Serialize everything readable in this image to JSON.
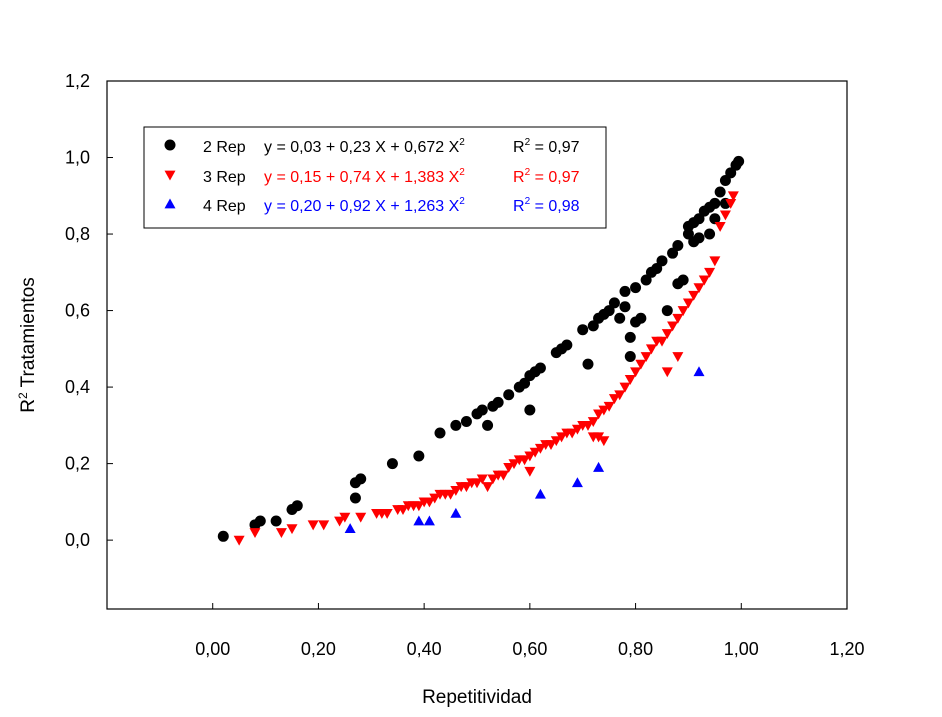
{
  "chart_data": {
    "type": "scatter",
    "xlabel": "Repetitividad",
    "ylabel": "R",
    "ylabel_sup": "2",
    "ylabel_rest": " Tratamientos",
    "xlim": [
      -0.2,
      1.2
    ],
    "ylim": [
      -0.18,
      1.2
    ],
    "xticks": [
      "0,00",
      "0,20",
      "0,40",
      "0,60",
      "0,80",
      "1,00",
      "1,20"
    ],
    "xtick_values": [
      0,
      0.2,
      0.4,
      0.6,
      0.8,
      1.0,
      1.2
    ],
    "yticks": [
      "0,0",
      "0,2",
      "0,4",
      "0,6",
      "0,8",
      "1,0",
      "1,2"
    ],
    "ytick_values": [
      0,
      0.2,
      0.4,
      0.6,
      0.8,
      1.0,
      1.2
    ],
    "grid": false,
    "legend_position": "top-left",
    "series": [
      {
        "name": "2 Rep",
        "marker": "circle",
        "color": "#000000",
        "equation": "y = 0,03 + 0,23 X + 0,672 X",
        "equation_sup": "2",
        "r2_label": "R",
        "r2_sup": "2",
        "r2_value": " = 0,97",
        "points": [
          [
            0.02,
            0.01
          ],
          [
            0.08,
            0.04
          ],
          [
            0.09,
            0.05
          ],
          [
            0.12,
            0.05
          ],
          [
            0.15,
            0.08
          ],
          [
            0.16,
            0.09
          ],
          [
            0.27,
            0.11
          ],
          [
            0.27,
            0.15
          ],
          [
            0.28,
            0.16
          ],
          [
            0.34,
            0.2
          ],
          [
            0.39,
            0.22
          ],
          [
            0.43,
            0.28
          ],
          [
            0.46,
            0.3
          ],
          [
            0.48,
            0.31
          ],
          [
            0.5,
            0.33
          ],
          [
            0.51,
            0.34
          ],
          [
            0.52,
            0.3
          ],
          [
            0.53,
            0.35
          ],
          [
            0.54,
            0.36
          ],
          [
            0.56,
            0.38
          ],
          [
            0.58,
            0.4
          ],
          [
            0.59,
            0.41
          ],
          [
            0.6,
            0.34
          ],
          [
            0.6,
            0.43
          ],
          [
            0.61,
            0.44
          ],
          [
            0.62,
            0.45
          ],
          [
            0.65,
            0.49
          ],
          [
            0.66,
            0.5
          ],
          [
            0.67,
            0.51
          ],
          [
            0.7,
            0.55
          ],
          [
            0.71,
            0.46
          ],
          [
            0.72,
            0.56
          ],
          [
            0.73,
            0.58
          ],
          [
            0.74,
            0.59
          ],
          [
            0.75,
            0.6
          ],
          [
            0.76,
            0.62
          ],
          [
            0.77,
            0.58
          ],
          [
            0.78,
            0.61
          ],
          [
            0.78,
            0.65
          ],
          [
            0.79,
            0.48
          ],
          [
            0.79,
            0.53
          ],
          [
            0.8,
            0.57
          ],
          [
            0.8,
            0.66
          ],
          [
            0.81,
            0.58
          ],
          [
            0.82,
            0.68
          ],
          [
            0.83,
            0.7
          ],
          [
            0.84,
            0.71
          ],
          [
            0.85,
            0.73
          ],
          [
            0.86,
            0.6
          ],
          [
            0.87,
            0.75
          ],
          [
            0.88,
            0.77
          ],
          [
            0.88,
            0.67
          ],
          [
            0.89,
            0.68
          ],
          [
            0.9,
            0.8
          ],
          [
            0.9,
            0.82
          ],
          [
            0.91,
            0.83
          ],
          [
            0.91,
            0.78
          ],
          [
            0.92,
            0.84
          ],
          [
            0.92,
            0.79
          ],
          [
            0.93,
            0.86
          ],
          [
            0.94,
            0.87
          ],
          [
            0.94,
            0.8
          ],
          [
            0.95,
            0.88
          ],
          [
            0.95,
            0.84
          ],
          [
            0.96,
            0.91
          ],
          [
            0.97,
            0.94
          ],
          [
            0.97,
            0.88
          ],
          [
            0.98,
            0.96
          ],
          [
            0.99,
            0.98
          ],
          [
            0.995,
            0.99
          ]
        ]
      },
      {
        "name": "3 Rep",
        "marker": "triangle-down",
        "color": "#ff0000",
        "equation": "y = 0,15 + 0,74 X + 1,383 X",
        "equation_sup": "2",
        "r2_label": "R",
        "r2_sup": "2",
        "r2_value": " = 0,97",
        "points": [
          [
            0.05,
            0.0
          ],
          [
            0.08,
            0.02
          ],
          [
            0.13,
            0.02
          ],
          [
            0.15,
            0.03
          ],
          [
            0.19,
            0.04
          ],
          [
            0.21,
            0.04
          ],
          [
            0.24,
            0.05
          ],
          [
            0.25,
            0.06
          ],
          [
            0.28,
            0.06
          ],
          [
            0.31,
            0.07
          ],
          [
            0.32,
            0.07
          ],
          [
            0.33,
            0.07
          ],
          [
            0.35,
            0.08
          ],
          [
            0.36,
            0.08
          ],
          [
            0.37,
            0.09
          ],
          [
            0.38,
            0.09
          ],
          [
            0.39,
            0.09
          ],
          [
            0.4,
            0.1
          ],
          [
            0.41,
            0.1
          ],
          [
            0.42,
            0.11
          ],
          [
            0.43,
            0.12
          ],
          [
            0.44,
            0.12
          ],
          [
            0.45,
            0.12
          ],
          [
            0.46,
            0.13
          ],
          [
            0.47,
            0.14
          ],
          [
            0.48,
            0.14
          ],
          [
            0.49,
            0.15
          ],
          [
            0.5,
            0.15
          ],
          [
            0.51,
            0.16
          ],
          [
            0.52,
            0.14
          ],
          [
            0.53,
            0.16
          ],
          [
            0.54,
            0.17
          ],
          [
            0.55,
            0.17
          ],
          [
            0.56,
            0.19
          ],
          [
            0.57,
            0.2
          ],
          [
            0.58,
            0.21
          ],
          [
            0.59,
            0.21
          ],
          [
            0.6,
            0.22
          ],
          [
            0.6,
            0.18
          ],
          [
            0.61,
            0.23
          ],
          [
            0.62,
            0.24
          ],
          [
            0.63,
            0.25
          ],
          [
            0.64,
            0.25
          ],
          [
            0.65,
            0.26
          ],
          [
            0.66,
            0.27
          ],
          [
            0.67,
            0.28
          ],
          [
            0.68,
            0.28
          ],
          [
            0.69,
            0.29
          ],
          [
            0.7,
            0.3
          ],
          [
            0.71,
            0.3
          ],
          [
            0.72,
            0.31
          ],
          [
            0.72,
            0.27
          ],
          [
            0.73,
            0.33
          ],
          [
            0.73,
            0.27
          ],
          [
            0.74,
            0.34
          ],
          [
            0.74,
            0.26
          ],
          [
            0.75,
            0.35
          ],
          [
            0.76,
            0.37
          ],
          [
            0.77,
            0.38
          ],
          [
            0.78,
            0.4
          ],
          [
            0.79,
            0.42
          ],
          [
            0.8,
            0.44
          ],
          [
            0.81,
            0.46
          ],
          [
            0.82,
            0.48
          ],
          [
            0.83,
            0.5
          ],
          [
            0.84,
            0.52
          ],
          [
            0.85,
            0.52
          ],
          [
            0.86,
            0.54
          ],
          [
            0.86,
            0.44
          ],
          [
            0.87,
            0.56
          ],
          [
            0.88,
            0.58
          ],
          [
            0.88,
            0.48
          ],
          [
            0.89,
            0.6
          ],
          [
            0.9,
            0.62
          ],
          [
            0.91,
            0.64
          ],
          [
            0.92,
            0.66
          ],
          [
            0.93,
            0.68
          ],
          [
            0.94,
            0.7
          ],
          [
            0.95,
            0.73
          ],
          [
            0.96,
            0.82
          ],
          [
            0.97,
            0.85
          ],
          [
            0.98,
            0.88
          ],
          [
            0.985,
            0.9
          ]
        ]
      },
      {
        "name": "4 Rep",
        "marker": "triangle-up",
        "color": "#0000ff",
        "equation": "y = 0,20 + 0,92 X + 1,263 X",
        "equation_sup": "2",
        "r2_label": "R",
        "r2_sup": "2",
        "r2_value": " = 0,98",
        "points": [
          [
            0.26,
            0.03
          ],
          [
            0.39,
            0.05
          ],
          [
            0.41,
            0.05
          ],
          [
            0.46,
            0.07
          ],
          [
            0.62,
            0.12
          ],
          [
            0.69,
            0.15
          ],
          [
            0.73,
            0.19
          ],
          [
            0.92,
            0.44
          ]
        ]
      }
    ]
  }
}
